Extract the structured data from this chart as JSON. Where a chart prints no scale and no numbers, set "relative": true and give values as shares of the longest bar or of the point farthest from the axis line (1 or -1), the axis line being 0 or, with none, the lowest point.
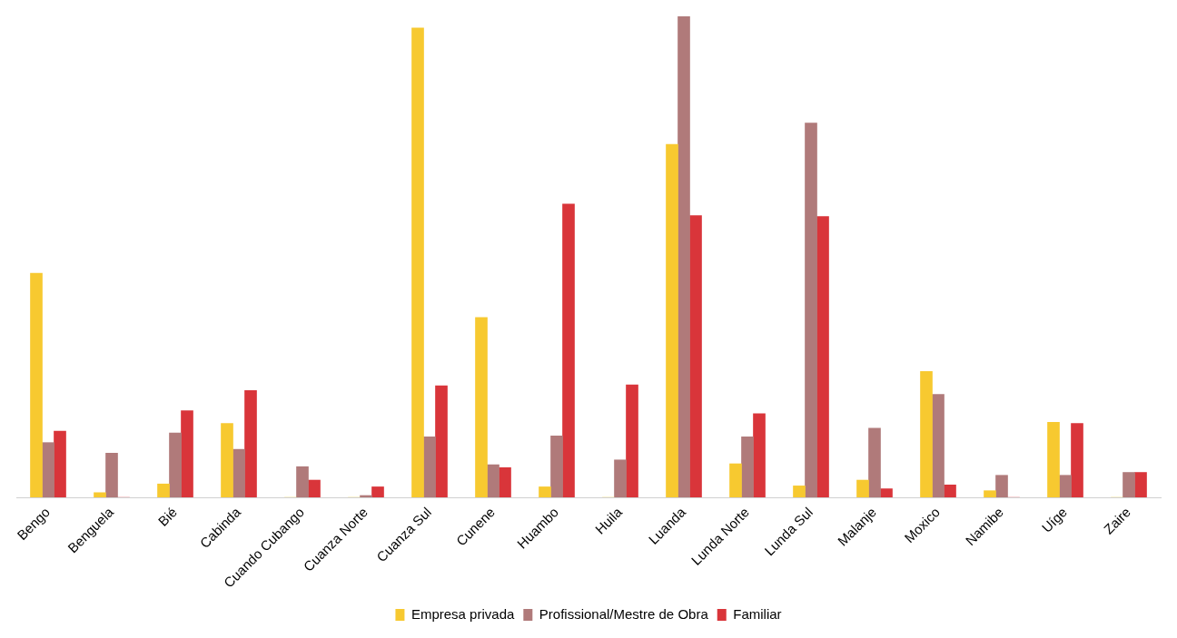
{
  "chart_data": {
    "type": "bar",
    "relative": true,
    "legend": "bottom",
    "grid": false,
    "categories": [
      "Bengo",
      "Benguela",
      "Bié",
      "Cabinda",
      "Cuando Cubango",
      "Cuanza Norte",
      "Cuanza Sul",
      "Cunene",
      "Huambo",
      "Huila",
      "Luanda",
      "Lunda Norte",
      "Lunda Sul",
      "Malanje",
      "Moxico",
      "Namibe",
      "Uíge",
      "Zaire"
    ],
    "series": [
      {
        "name": "Empresa privada",
        "color": "#f7c930",
        "values": [
          0.466,
          0.01,
          0.028,
          0.154,
          0,
          0,
          0.976,
          0.374,
          0.022,
          0,
          0.734,
          0.07,
          0.024,
          0.036,
          0.262,
          0.014,
          0.156,
          0
        ]
      },
      {
        "name": "Profissional/Mestre de Obra",
        "color": "#b07a7a",
        "values": [
          0.114,
          0.092,
          0.134,
          0.1,
          0.064,
          0.004,
          0.126,
          0.068,
          0.128,
          0.078,
          1,
          0.126,
          0.778,
          0.144,
          0.214,
          0.046,
          0.046,
          0.052
        ]
      },
      {
        "name": "Familiar",
        "color": "#d9353a",
        "values": [
          0.138,
          0,
          0.18,
          0.222,
          0.036,
          0.022,
          0.232,
          0.062,
          0.61,
          0.234,
          0.586,
          0.174,
          0.584,
          0.018,
          0.026,
          0,
          0.154,
          0.052
        ]
      }
    ]
  }
}
